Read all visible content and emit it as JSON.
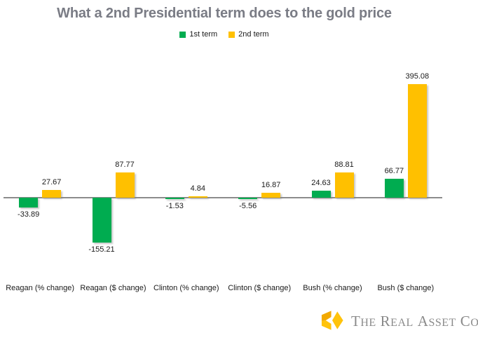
{
  "chart_data": {
    "type": "bar",
    "title": "What a 2nd Presidential term does to the gold price",
    "categories": [
      "Reagan (% change)",
      "Reagan ($ change)",
      "Clinton (% change)",
      "Clinton ($ change)",
      "Bush (% change)",
      "Bush ($ change)"
    ],
    "series": [
      {
        "name": "1st term",
        "color": "#00AC50",
        "values": [
          -33.89,
          -155.21,
          -1.53,
          -5.56,
          24.63,
          66.77
        ]
      },
      {
        "name": "2nd term",
        "color": "#FFC000",
        "values": [
          27.67,
          87.77,
          4.84,
          16.87,
          88.81,
          395.08
        ]
      }
    ],
    "data_labels": true,
    "legend_position": "top",
    "grid": false,
    "y_axis_visible": false,
    "baseline": 0
  },
  "colors": {
    "title": "#7A7C85",
    "axis_line": "#8C8C8C",
    "label_text": "#1A1A1A"
  },
  "logo": {
    "text": "The Real Asset Co",
    "words": [
      "The",
      "Real",
      "Asset",
      "Co"
    ],
    "text_color": "#8A8A8A",
    "icon": "gold-cube-icon",
    "gold_bright": "#FFC30B",
    "gold_dark": "#F2A900"
  }
}
